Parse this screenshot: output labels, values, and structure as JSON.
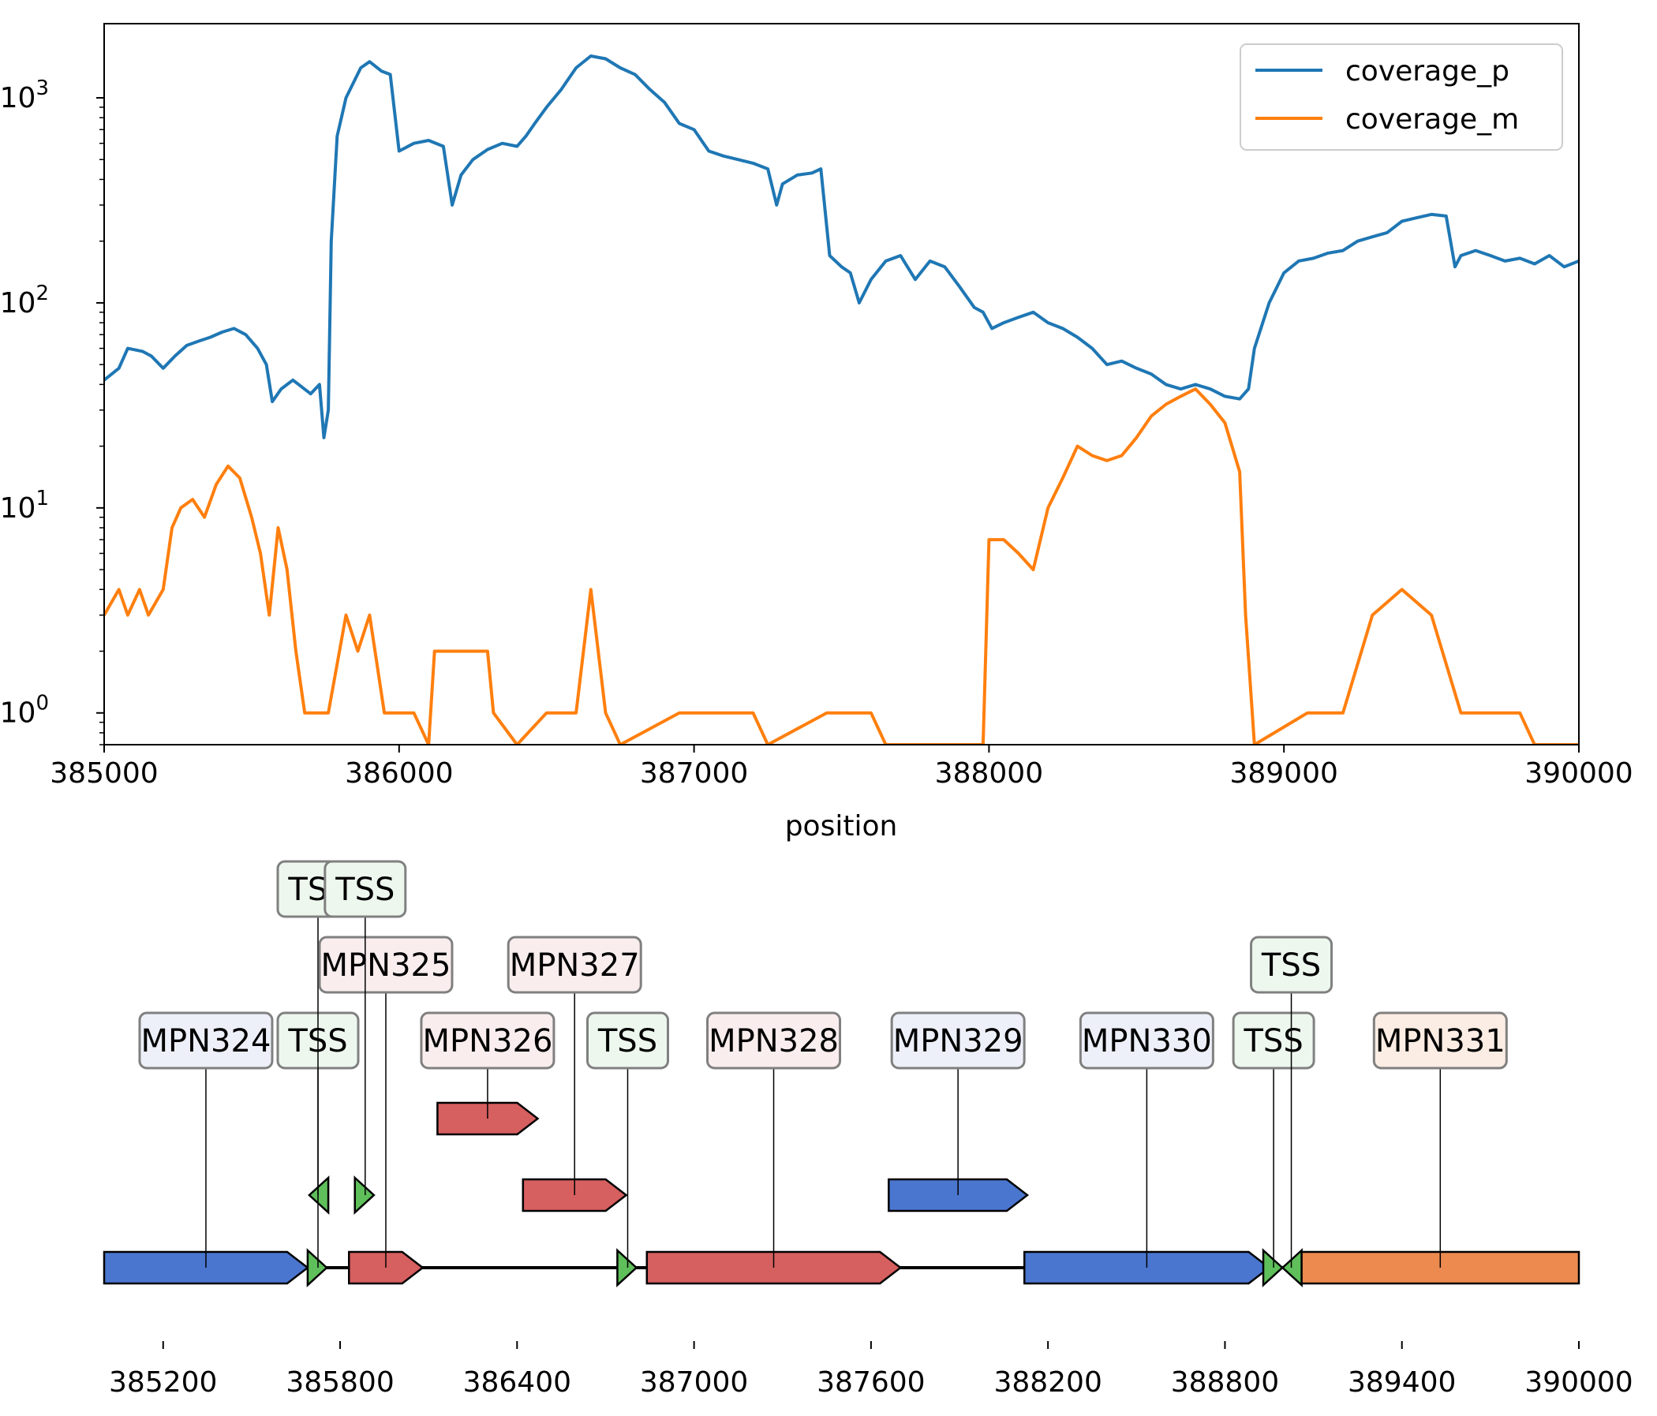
{
  "chart_data": [
    {
      "type": "line",
      "xlabel": "position",
      "ylabel": "",
      "title": "",
      "xlim": [
        385000,
        390000
      ],
      "ylim": [
        0.7,
        2300
      ],
      "yscale": "log",
      "xticks": [
        385000,
        386000,
        387000,
        388000,
        389000,
        390000
      ],
      "xtick_labels": [
        "385000",
        "386000",
        "387000",
        "388000",
        "389000",
        "390000"
      ],
      "ytick_labels": [
        {
          "base": "10",
          "exp": "0",
          "value": 1
        },
        {
          "base": "10",
          "exp": "1",
          "value": 10
        },
        {
          "base": "10",
          "exp": "2",
          "value": 100
        },
        {
          "base": "10",
          "exp": "3",
          "value": 1000
        }
      ],
      "legend_position": "top-right",
      "series": [
        {
          "name": "coverage_p",
          "color": "#1f77b4",
          "points": [
            [
              385000,
              42
            ],
            [
              385050,
              48
            ],
            [
              385080,
              60
            ],
            [
              385130,
              58
            ],
            [
              385160,
              55
            ],
            [
              385200,
              48
            ],
            [
              385240,
              55
            ],
            [
              385280,
              62
            ],
            [
              385320,
              65
            ],
            [
              385360,
              68
            ],
            [
              385400,
              72
            ],
            [
              385440,
              75
            ],
            [
              385480,
              70
            ],
            [
              385520,
              60
            ],
            [
              385550,
              50
            ],
            [
              385570,
              33
            ],
            [
              385600,
              38
            ],
            [
              385640,
              42
            ],
            [
              385700,
              36
            ],
            [
              385730,
              40
            ],
            [
              385745,
              22
            ],
            [
              385760,
              30
            ],
            [
              385770,
              200
            ],
            [
              385790,
              650
            ],
            [
              385820,
              1000
            ],
            [
              385870,
              1400
            ],
            [
              385900,
              1500
            ],
            [
              385940,
              1350
            ],
            [
              385970,
              1300
            ],
            [
              386000,
              550
            ],
            [
              386050,
              600
            ],
            [
              386100,
              620
            ],
            [
              386150,
              580
            ],
            [
              386180,
              300
            ],
            [
              386210,
              420
            ],
            [
              386250,
              500
            ],
            [
              386300,
              560
            ],
            [
              386350,
              600
            ],
            [
              386400,
              580
            ],
            [
              386430,
              650
            ],
            [
              386460,
              750
            ],
            [
              386500,
              900
            ],
            [
              386550,
              1100
            ],
            [
              386600,
              1400
            ],
            [
              386650,
              1600
            ],
            [
              386700,
              1550
            ],
            [
              386750,
              1400
            ],
            [
              386800,
              1300
            ],
            [
              386850,
              1100
            ],
            [
              386900,
              950
            ],
            [
              386950,
              750
            ],
            [
              387000,
              700
            ],
            [
              387050,
              550
            ],
            [
              387100,
              520
            ],
            [
              387150,
              500
            ],
            [
              387200,
              480
            ],
            [
              387250,
              450
            ],
            [
              387280,
              300
            ],
            [
              387300,
              380
            ],
            [
              387350,
              420
            ],
            [
              387400,
              430
            ],
            [
              387430,
              450
            ],
            [
              387460,
              170
            ],
            [
              387500,
              150
            ],
            [
              387530,
              140
            ],
            [
              387560,
              100
            ],
            [
              387600,
              130
            ],
            [
              387650,
              160
            ],
            [
              387700,
              170
            ],
            [
              387750,
              130
            ],
            [
              387800,
              160
            ],
            [
              387850,
              150
            ],
            [
              387900,
              120
            ],
            [
              387950,
              95
            ],
            [
              387980,
              90
            ],
            [
              388010,
              75
            ],
            [
              388050,
              80
            ],
            [
              388100,
              85
            ],
            [
              388150,
              90
            ],
            [
              388200,
              80
            ],
            [
              388250,
              75
            ],
            [
              388300,
              68
            ],
            [
              388350,
              60
            ],
            [
              388400,
              50
            ],
            [
              388450,
              52
            ],
            [
              388500,
              48
            ],
            [
              388550,
              45
            ],
            [
              388600,
              40
            ],
            [
              388650,
              38
            ],
            [
              388700,
              40
            ],
            [
              388750,
              38
            ],
            [
              388800,
              35
            ],
            [
              388850,
              34
            ],
            [
              388880,
              38
            ],
            [
              388900,
              60
            ],
            [
              388950,
              100
            ],
            [
              389000,
              140
            ],
            [
              389050,
              160
            ],
            [
              389100,
              165
            ],
            [
              389150,
              175
            ],
            [
              389200,
              180
            ],
            [
              389250,
              200
            ],
            [
              389300,
              210
            ],
            [
              389350,
              220
            ],
            [
              389400,
              250
            ],
            [
              389450,
              260
            ],
            [
              389500,
              270
            ],
            [
              389550,
              265
            ],
            [
              389580,
              150
            ],
            [
              389600,
              170
            ],
            [
              389650,
              180
            ],
            [
              389700,
              170
            ],
            [
              389750,
              160
            ],
            [
              389800,
              165
            ],
            [
              389850,
              155
            ],
            [
              389900,
              170
            ],
            [
              389950,
              150
            ],
            [
              390000,
              160
            ]
          ]
        },
        {
          "name": "coverage_m",
          "color": "#ff7f0e",
          "points": [
            [
              385000,
              3
            ],
            [
              385050,
              4
            ],
            [
              385080,
              3
            ],
            [
              385120,
              4
            ],
            [
              385150,
              3
            ],
            [
              385200,
              4
            ],
            [
              385230,
              8
            ],
            [
              385260,
              10
            ],
            [
              385300,
              11
            ],
            [
              385340,
              9
            ],
            [
              385380,
              13
            ],
            [
              385420,
              16
            ],
            [
              385460,
              14
            ],
            [
              385500,
              9
            ],
            [
              385530,
              6
            ],
            [
              385560,
              3
            ],
            [
              385590,
              8
            ],
            [
              385620,
              5
            ],
            [
              385650,
              2
            ],
            [
              385680,
              1
            ],
            [
              385700,
              1
            ],
            [
              385760,
              1
            ],
            [
              385820,
              3
            ],
            [
              385860,
              2
            ],
            [
              385900,
              3
            ],
            [
              385950,
              1
            ],
            [
              386000,
              1
            ],
            [
              386050,
              1
            ],
            [
              386100,
              0.7
            ],
            [
              386120,
              2
            ],
            [
              386200,
              2
            ],
            [
              386300,
              2
            ],
            [
              386320,
              1
            ],
            [
              386400,
              0.7
            ],
            [
              386500,
              1
            ],
            [
              386600,
              1
            ],
            [
              386650,
              4
            ],
            [
              386700,
              1
            ],
            [
              386750,
              0.7
            ],
            [
              386950,
              1
            ],
            [
              387050,
              1
            ],
            [
              387100,
              1
            ],
            [
              387200,
              1
            ],
            [
              387250,
              0.7
            ],
            [
              387450,
              1
            ],
            [
              387600,
              1
            ],
            [
              387650,
              0.7
            ],
            [
              387980,
              0.7
            ],
            [
              388000,
              7
            ],
            [
              388050,
              7
            ],
            [
              388100,
              6
            ],
            [
              388150,
              5
            ],
            [
              388200,
              10
            ],
            [
              388250,
              14
            ],
            [
              388300,
              20
            ],
            [
              388350,
              18
            ],
            [
              388400,
              17
            ],
            [
              388450,
              18
            ],
            [
              388500,
              22
            ],
            [
              388550,
              28
            ],
            [
              388600,
              32
            ],
            [
              388650,
              35
            ],
            [
              388700,
              38
            ],
            [
              388750,
              32
            ],
            [
              388800,
              26
            ],
            [
              388850,
              15
            ],
            [
              388870,
              3
            ],
            [
              388900,
              0.7
            ],
            [
              389080,
              1
            ],
            [
              389200,
              1
            ],
            [
              389300,
              3
            ],
            [
              389400,
              4
            ],
            [
              389500,
              3
            ],
            [
              389600,
              1
            ],
            [
              389700,
              1
            ],
            [
              389800,
              1
            ],
            [
              389850,
              0.7
            ],
            [
              390000,
              0.7
            ]
          ]
        }
      ]
    },
    {
      "type": "gene-map",
      "xlim": [
        385000,
        390000
      ],
      "xticks": [
        385200,
        385800,
        386400,
        387000,
        387600,
        388200,
        388800,
        389400,
        390000
      ],
      "xtick_labels": [
        "385200",
        "385800",
        "386400",
        "387000",
        "387600",
        "388200",
        "388800",
        "389400",
        "390000"
      ],
      "features": [
        {
          "label": "MPN324",
          "start": 385000,
          "end": 385690,
          "strand": 1,
          "track": 0,
          "color": "#4a76cf",
          "label_level": 0,
          "label_bg": "#edf0f9"
        },
        {
          "label": "TSS",
          "start": 385690,
          "end": 385760,
          "strand": 1,
          "track": 0,
          "color": "#5fbf5a",
          "label_level": 0,
          "label_bg": "#edf7ee"
        },
        {
          "label": "TSS",
          "start": 385690,
          "end": 385760,
          "strand": -1,
          "track": 1,
          "color": "#5fbf5a",
          "label_level": 2,
          "label_bg": "#edf7ee"
        },
        {
          "label": "MPN325",
          "start": 385830,
          "end": 386080,
          "strand": 1,
          "track": 0,
          "color": "#d65f5f",
          "label_level": 1,
          "label_bg": "#f9eded"
        },
        {
          "label": "TSS",
          "start": 385850,
          "end": 385920,
          "strand": 1,
          "track": 1,
          "color": "#5fbf5a",
          "label_level": 2,
          "label_bg": "#edf7ee"
        },
        {
          "label": "MPN326",
          "start": 386130,
          "end": 386470,
          "strand": 1,
          "track": 3,
          "color": "#d65f5f",
          "label_level": 0,
          "label_bg": "#f9eded"
        },
        {
          "label": "MPN327",
          "start": 386420,
          "end": 386770,
          "strand": 1,
          "track": 1,
          "color": "#d65f5f",
          "label_level": 1,
          "label_bg": "#f9eded"
        },
        {
          "label": "TSS",
          "start": 386740,
          "end": 386810,
          "strand": 1,
          "track": 0,
          "color": "#5fbf5a",
          "label_level": 0,
          "label_bg": "#edf7ee"
        },
        {
          "label": "MPN328",
          "start": 386840,
          "end": 387700,
          "strand": 1,
          "track": 0,
          "color": "#d65f5f",
          "label_level": 0,
          "label_bg": "#f9eded"
        },
        {
          "label": "MPN329",
          "start": 387660,
          "end": 388130,
          "strand": 1,
          "track": 1,
          "color": "#4a76cf",
          "label_level": 0,
          "label_bg": "#edf0f9"
        },
        {
          "label": "MPN330",
          "start": 388120,
          "end": 388950,
          "strand": 1,
          "track": 0,
          "color": "#4a76cf",
          "label_level": 0,
          "label_bg": "#edf0f9"
        },
        {
          "label": "TSS",
          "start": 388930,
          "end": 389000,
          "strand": 1,
          "track": 0,
          "color": "#5fbf5a",
          "label_level": 0,
          "label_bg": "#edf7ee"
        },
        {
          "label": "TSS",
          "start": 388990,
          "end": 389060,
          "strand": -1,
          "track": 0,
          "color": "#5fbf5a",
          "label_level": 1,
          "label_bg": "#edf7ee"
        },
        {
          "label": "MPN331",
          "start": 389060,
          "end": 390000,
          "strand": 0,
          "track": 0,
          "color": "#ec8a50",
          "label_level": 0,
          "label_bg": "#fbede4"
        }
      ]
    }
  ]
}
